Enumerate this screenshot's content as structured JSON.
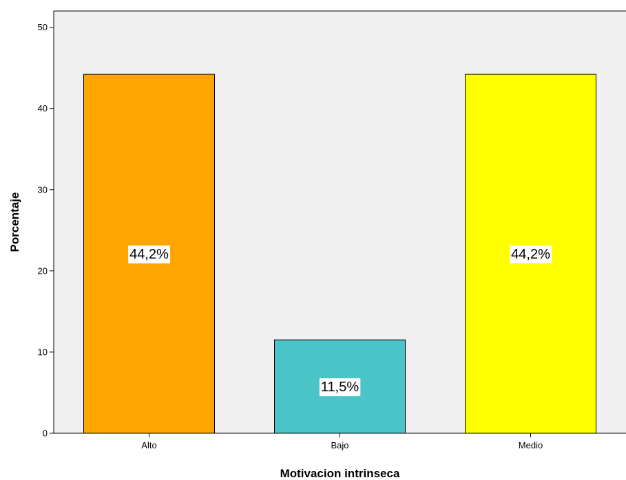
{
  "chart_data": {
    "type": "bar",
    "categories": [
      "Alto",
      "Bajo",
      "Medio"
    ],
    "values": [
      44.2,
      11.5,
      44.2
    ],
    "data_labels": [
      "44,2%",
      "11,5%",
      "44,2%"
    ],
    "colors": [
      "#FFA500",
      "#4BC4C7",
      "#FFFF00"
    ],
    "xlabel": "Motivacion intrinseca",
    "ylabel": "Porcentaje",
    "ylim": [
      0,
      52
    ],
    "yticks": [
      0,
      10,
      20,
      30,
      40,
      50
    ],
    "plot_background": "#F0F0F0",
    "grid": false
  }
}
